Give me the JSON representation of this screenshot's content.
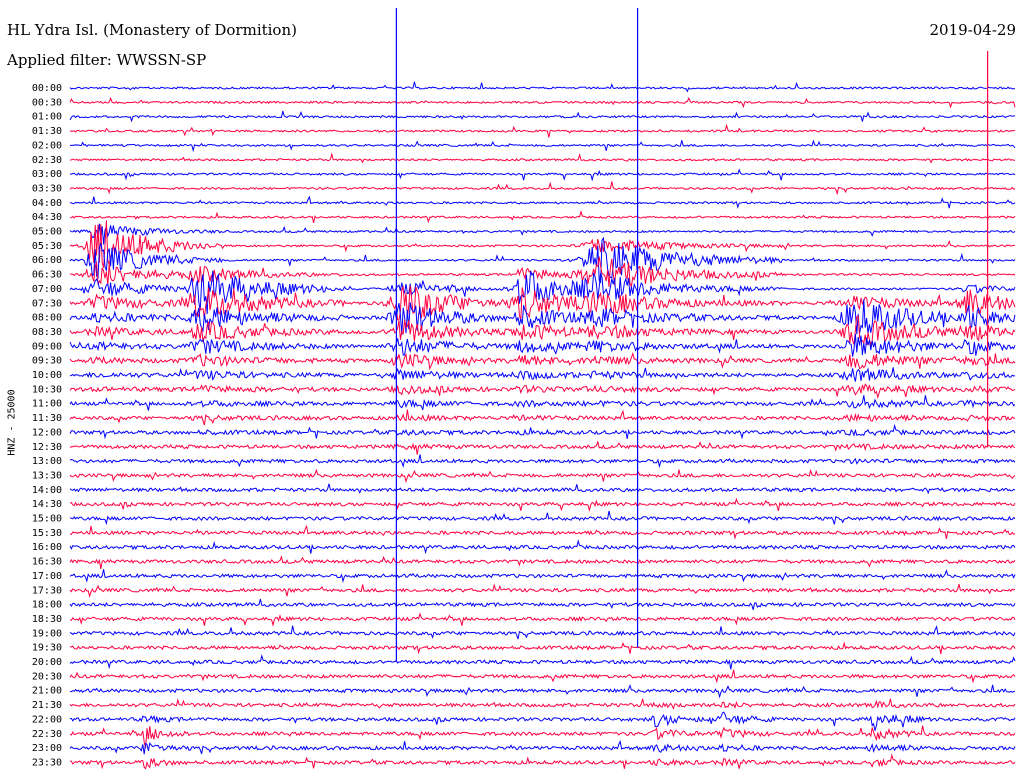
{
  "header": {
    "title": "HL Ydra Isl. (Monastery of Dormition)",
    "date": "2019-04-29",
    "filter": "Applied filter: WWSSN-SP"
  },
  "chart_data": {
    "type": "line",
    "ylabel": "HNZ - 25000",
    "colors": {
      "even": "#0000ff",
      "odd": "#ff0040",
      "background": "#ffffff"
    },
    "rows": [
      "00:00",
      "00:30",
      "01:00",
      "01:30",
      "02:00",
      "02:30",
      "03:00",
      "03:30",
      "04:00",
      "04:30",
      "05:00",
      "05:30",
      "06:00",
      "06:30",
      "07:00",
      "07:30",
      "08:00",
      "08:30",
      "09:00",
      "09:30",
      "10:00",
      "10:30",
      "11:00",
      "11:30",
      "12:00",
      "12:30",
      "13:00",
      "13:30",
      "14:00",
      "14:30",
      "15:00",
      "15:30",
      "16:00",
      "16:30",
      "17:00",
      "17:30",
      "18:00",
      "18:30",
      "19:00",
      "19:30",
      "20:00",
      "20:30",
      "21:00",
      "21:30",
      "22:00",
      "22:30",
      "23:00",
      "23:30"
    ],
    "events": [
      {
        "row": 11,
        "pos": 0.03,
        "amp": 4.0,
        "dur": 0.11
      },
      {
        "row": 14,
        "pos": 0.14,
        "amp": 3.6,
        "dur": 0.13
      },
      {
        "row": 15,
        "pos": 0.35,
        "amp": 3.8,
        "dur": 0.1
      },
      {
        "row": 14,
        "pos": 0.48,
        "amp": 3.4,
        "dur": 0.1
      },
      {
        "row": 12,
        "pos": 0.56,
        "amp": 3.8,
        "dur": 0.16
      },
      {
        "row": 16,
        "pos": 0.83,
        "amp": 3.4,
        "dur": 0.12
      },
      {
        "row": 15,
        "pos": 0.95,
        "amp": 2.2,
        "dur": 0.08
      },
      {
        "row": 44,
        "pos": 0.62,
        "amp": 1.0,
        "dur": 0.05
      },
      {
        "row": 44,
        "pos": 0.69,
        "amp": 1.0,
        "dur": 0.05
      },
      {
        "row": 44,
        "pos": 0.85,
        "amp": 1.2,
        "dur": 0.05
      },
      {
        "row": 45,
        "pos": 0.08,
        "amp": 1.4,
        "dur": 0.04
      }
    ],
    "spikes": [
      {
        "frac": 0.345,
        "from_row": 0,
        "to_row": 40
      },
      {
        "frac": 0.6,
        "from_row": 0,
        "to_row": 39
      },
      {
        "frac": 0.97,
        "from_row": 3,
        "to_row": 25
      }
    ]
  }
}
